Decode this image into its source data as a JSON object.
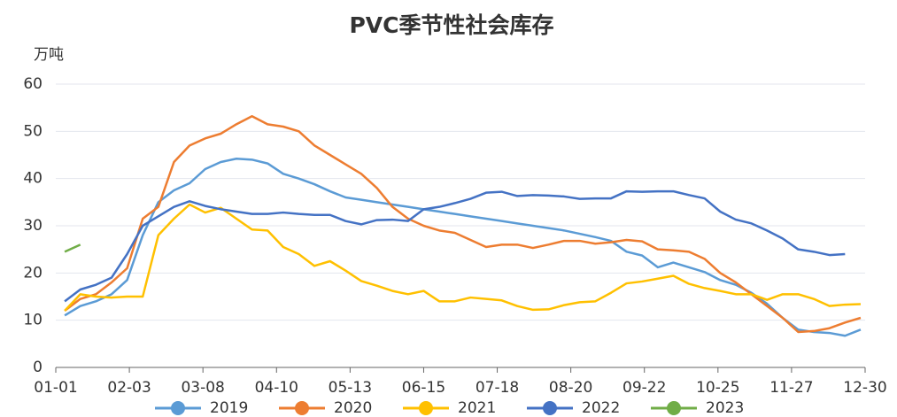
{
  "chart_data": {
    "type": "line",
    "title": "PVC季节性社会库存",
    "y_label": "万吨",
    "xlim": [
      0,
      363
    ],
    "xticks": [
      {
        "value": 0,
        "label": "01-01"
      },
      {
        "value": 33,
        "label": "02-03"
      },
      {
        "value": 66,
        "label": "03-08"
      },
      {
        "value": 99,
        "label": "04-10"
      },
      {
        "value": 132,
        "label": "05-13"
      },
      {
        "value": 165,
        "label": "06-15"
      },
      {
        "value": 198,
        "label": "07-18"
      },
      {
        "value": 231,
        "label": "08-20"
      },
      {
        "value": 264,
        "label": "09-22"
      },
      {
        "value": 297,
        "label": "10-25"
      },
      {
        "value": 330,
        "label": "11-27"
      },
      {
        "value": 363,
        "label": "12-30"
      }
    ],
    "ylim": [
      0,
      60
    ],
    "yticks": [
      0,
      10,
      20,
      30,
      40,
      50,
      60
    ],
    "grid": true,
    "legend": "bottom",
    "x": [
      4,
      11,
      18,
      25,
      32,
      39,
      46,
      53,
      60,
      67,
      74,
      81,
      88,
      95,
      102,
      109,
      116,
      123,
      130,
      137,
      144,
      151,
      158,
      165,
      172,
      179,
      186,
      193,
      200,
      207,
      214,
      221,
      228,
      235,
      242,
      249,
      256,
      263,
      270,
      277,
      284,
      291,
      298,
      305,
      312,
      319,
      326,
      333,
      340,
      347,
      354,
      361
    ],
    "series": [
      {
        "name": "2019",
        "color": "#5b9bd5",
        "values": [
          11,
          13,
          14,
          15.5,
          18.5,
          28,
          35,
          37.5,
          39,
          42,
          43.5,
          44.2,
          44,
          43.2,
          41,
          40,
          38.8,
          37.3,
          36,
          35.5,
          35,
          34.5,
          34,
          33.5,
          33,
          32.5,
          32,
          31.5,
          31,
          30.5,
          30,
          29.5,
          29,
          28.3,
          27.6,
          26.8,
          24.5,
          23.7,
          21.2,
          22.2,
          21.2,
          20.2,
          18.5,
          17.5,
          15.8,
          13.5,
          10.5,
          8,
          7.5,
          7.3,
          6.7,
          8
        ]
      },
      {
        "name": "2020",
        "color": "#ed7d31",
        "values": [
          12,
          14.5,
          15.5,
          18,
          21,
          31.5,
          34,
          43.5,
          47,
          48.5,
          49.5,
          51.5,
          53.2,
          51.5,
          51,
          50,
          47,
          45,
          43,
          41,
          38,
          34,
          31.5,
          30,
          29,
          28.5,
          27,
          25.5,
          26,
          26,
          25.3,
          26,
          26.8,
          26.8,
          26.2,
          26.5,
          27,
          26.7,
          25,
          24.8,
          24.5,
          23,
          20,
          18,
          15.5,
          13,
          10.5,
          7.5,
          7.7,
          8.3,
          9.5,
          10.5
        ]
      },
      {
        "name": "2021",
        "color": "#ffc000",
        "values": [
          12,
          15.5,
          15,
          14.8,
          15,
          15,
          28,
          31.5,
          34.5,
          32.8,
          33.8,
          31.5,
          29.2,
          29,
          25.5,
          24,
          21.5,
          22.5,
          20.5,
          18.3,
          17.3,
          16.2,
          15.5,
          16.2,
          14,
          14,
          14.8,
          14.5,
          14.2,
          13,
          12.2,
          12.3,
          13.2,
          13.8,
          14,
          15.8,
          17.8,
          18.2,
          18.8,
          19.4,
          17.7,
          16.8,
          16.2,
          15.5,
          15.5,
          14.3,
          15.5,
          15.5,
          14.5,
          13,
          13.3,
          13.4
        ]
      },
      {
        "name": "2022",
        "color": "#4472c4",
        "values": [
          14,
          16.5,
          17.5,
          19,
          24,
          30,
          32,
          34,
          35.2,
          34.2,
          33.5,
          33,
          32.5,
          32.5,
          32.8,
          32.5,
          32.3,
          32.3,
          31,
          30.3,
          31.2,
          31.3,
          31,
          33.5,
          34,
          34.8,
          35.7,
          37,
          37.2,
          36.3,
          36.5,
          36.4,
          36.2,
          35.7,
          35.8,
          35.8,
          37.3,
          37.2,
          37.3,
          37.3,
          36.5,
          35.8,
          33,
          31.3,
          30.5,
          29,
          27.3,
          25,
          24.5,
          23.8,
          24,
          null
        ]
      },
      {
        "name": "2023",
        "color": "#70ad47",
        "values": [
          24.5,
          26,
          null,
          null,
          null,
          null,
          null,
          null,
          null,
          null,
          null,
          null,
          null,
          null,
          null,
          null,
          null,
          null,
          null,
          null,
          null,
          null,
          null,
          null,
          null,
          null,
          null,
          null,
          null,
          null,
          null,
          null,
          null,
          null,
          null,
          null,
          null,
          null,
          null,
          null,
          null,
          null,
          null,
          null,
          null,
          null,
          null,
          null,
          null,
          null,
          null,
          null
        ]
      }
    ]
  }
}
